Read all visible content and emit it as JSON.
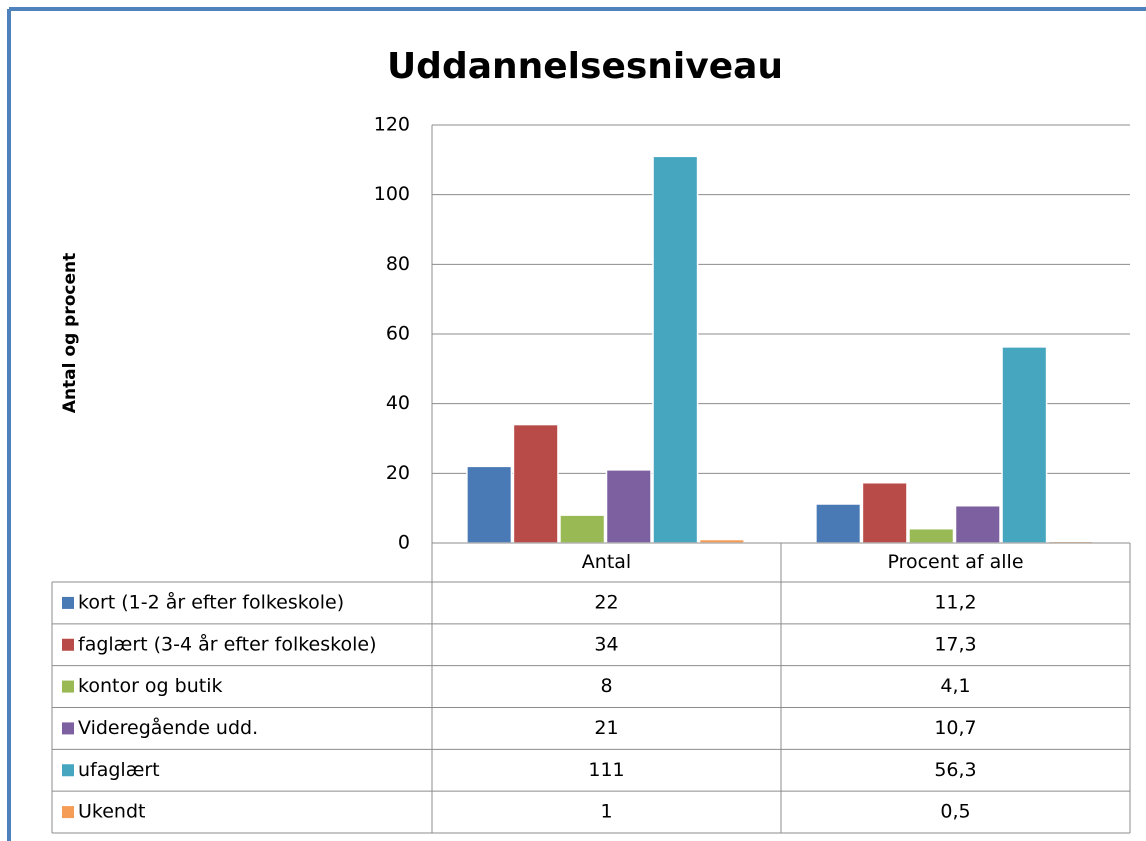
{
  "chart_data": {
    "type": "bar",
    "title": "Uddannelsesniveau",
    "y_label": "Antal og procent",
    "categories": [
      "Antal",
      "Procent af alle"
    ],
    "series": [
      {
        "name": "kort (1-2 år efter folkeskole)",
        "color": "#4a7ab5",
        "values": [
          22,
          11.2
        ],
        "value_labels": [
          "22",
          "11,2"
        ]
      },
      {
        "name": "faglært (3-4 år efter folkeskole)",
        "color": "#b84a47",
        "values": [
          34,
          17.3
        ],
        "value_labels": [
          "34",
          "17,3"
        ]
      },
      {
        "name": "kontor og butik",
        "color": "#98b954",
        "values": [
          8,
          4.1
        ],
        "value_labels": [
          "8",
          "4,1"
        ]
      },
      {
        "name": "Videregående udd.",
        "color": "#7d60a0",
        "values": [
          21,
          10.7
        ],
        "value_labels": [
          "21",
          "10,7"
        ]
      },
      {
        "name": "ufaglært",
        "color": "#46a5bf",
        "values": [
          111,
          56.3
        ],
        "value_labels": [
          "111",
          "56,3"
        ]
      },
      {
        "name": "Ukendt",
        "color": "#f59d56",
        "values": [
          1,
          0.5
        ],
        "value_labels": [
          "1",
          "0,5"
        ]
      }
    ],
    "ylim": [
      0,
      120
    ],
    "yticks": [
      0,
      20,
      40,
      60,
      80,
      100,
      120
    ],
    "grid": true,
    "legend": "table"
  }
}
